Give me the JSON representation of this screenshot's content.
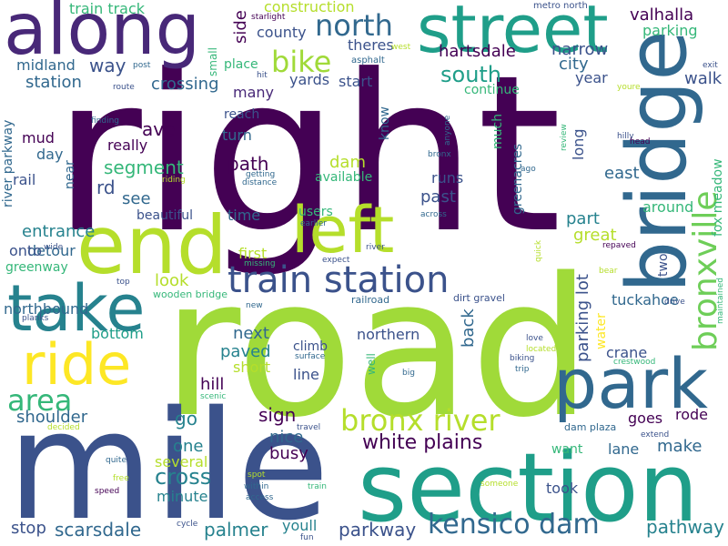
{
  "word_cloud": {
    "background": "#ffffff",
    "palette": {
      "dark_purple": "#440154",
      "purple": "#482878",
      "indigo": "#3b528b",
      "blue": "#31688e",
      "teal_blue": "#26828e",
      "teal": "#1f9e89",
      "green": "#35b779",
      "light_green": "#6ece58",
      "lime": "#b5de2b",
      "yellow": "#fde725"
    },
    "words": [
      {
        "text": "right",
        "color": "#440154"
      },
      {
        "text": "road",
        "color": "#a0da39"
      },
      {
        "text": "mile",
        "color": "#3b528b"
      },
      {
        "text": "section",
        "color": "#1f9e89"
      },
      {
        "text": "end",
        "color": "#b5de2b"
      },
      {
        "text": "along",
        "color": "#482878"
      },
      {
        "text": "bridge",
        "color": "#31688e"
      },
      {
        "text": "street",
        "color": "#1f9e89"
      },
      {
        "text": "take",
        "color": "#26828e"
      },
      {
        "text": "park",
        "color": "#31688e"
      },
      {
        "text": "left",
        "color": "#b5de2b"
      },
      {
        "text": "ride",
        "color": "#fde725"
      },
      {
        "text": "train station",
        "color": "#3b528b"
      },
      {
        "text": "bronxville",
        "color": "#6ece58"
      },
      {
        "text": "kensico dam",
        "color": "#31688e"
      },
      {
        "text": "bronx river",
        "color": "#b5de2b"
      },
      {
        "text": "north",
        "color": "#31688e"
      },
      {
        "text": "area",
        "color": "#35b779"
      },
      {
        "text": "bike",
        "color": "#a0da39"
      },
      {
        "text": "white plains",
        "color": "#440154"
      },
      {
        "text": "south",
        "color": "#1f9e89"
      },
      {
        "text": "scarsdale",
        "color": "#31688e"
      },
      {
        "text": "cross",
        "color": "#26828e"
      },
      {
        "text": "pathway",
        "color": "#26828e"
      },
      {
        "text": "parkway",
        "color": "#3b528b"
      },
      {
        "text": "hartsdale",
        "color": "#440154"
      },
      {
        "text": "valhalla",
        "color": "#440154"
      },
      {
        "text": "parking",
        "color": "#35b779"
      },
      {
        "text": "narrow",
        "color": "#3b528b"
      },
      {
        "text": "city",
        "color": "#31688e"
      },
      {
        "text": "year",
        "color": "#3b528b"
      },
      {
        "text": "walk",
        "color": "#3b528b"
      },
      {
        "text": "east",
        "color": "#31688e"
      },
      {
        "text": "around",
        "color": "#35b779"
      },
      {
        "text": "great",
        "color": "#b5de2b"
      },
      {
        "text": "part",
        "color": "#26828e"
      },
      {
        "text": "tuckahoe",
        "color": "#31688e"
      },
      {
        "text": "crane",
        "color": "#3b528b"
      },
      {
        "text": "make",
        "color": "#31688e"
      },
      {
        "text": "rode",
        "color": "#440154"
      },
      {
        "text": "lane",
        "color": "#31688e"
      },
      {
        "text": "took",
        "color": "#3b528b"
      },
      {
        "text": "goes",
        "color": "#440154"
      },
      {
        "text": "want",
        "color": "#35b779"
      },
      {
        "text": "northbound",
        "color": "#31688e"
      },
      {
        "text": "bottom",
        "color": "#1f9e89"
      },
      {
        "text": "next",
        "color": "#31688e"
      },
      {
        "text": "paved",
        "color": "#26828e"
      },
      {
        "text": "short",
        "color": "#b5de2b"
      },
      {
        "text": "hill",
        "color": "#440154"
      },
      {
        "text": "sign",
        "color": "#440154"
      },
      {
        "text": "nice",
        "color": "#31688e"
      },
      {
        "text": "busy",
        "color": "#440154"
      },
      {
        "text": "one",
        "color": "#26828e"
      },
      {
        "text": "several",
        "color": "#b5de2b"
      },
      {
        "text": "minute",
        "color": "#26828e"
      },
      {
        "text": "palmer",
        "color": "#26828e"
      },
      {
        "text": "youll",
        "color": "#26828e"
      },
      {
        "text": "stop",
        "color": "#3b528b"
      },
      {
        "text": "go",
        "color": "#26828e"
      },
      {
        "text": "shoulder",
        "color": "#31688e"
      },
      {
        "text": "entrance",
        "color": "#26828e"
      },
      {
        "text": "detour",
        "color": "#31688e"
      },
      {
        "text": "onto",
        "color": "#3b528b"
      },
      {
        "text": "greenway",
        "color": "#35b779"
      },
      {
        "text": "day",
        "color": "#31688e"
      },
      {
        "text": "mud",
        "color": "#440154"
      },
      {
        "text": "rail",
        "color": "#3b528b"
      },
      {
        "text": "near",
        "color": "#31688e"
      },
      {
        "text": "segment",
        "color": "#35b779"
      },
      {
        "text": "really",
        "color": "#440154"
      },
      {
        "text": "rd",
        "color": "#3b528b"
      },
      {
        "text": "ave",
        "color": "#440154"
      },
      {
        "text": "see",
        "color": "#31688e"
      },
      {
        "text": "beautiful",
        "color": "#3b528b"
      },
      {
        "text": "time",
        "color": "#31688e"
      },
      {
        "text": "path",
        "color": "#440154"
      },
      {
        "text": "dam",
        "color": "#b5de2b"
      },
      {
        "text": "available",
        "color": "#35b779"
      },
      {
        "text": "runs",
        "color": "#3b528b"
      },
      {
        "text": "past",
        "color": "#3b528b"
      },
      {
        "text": "users",
        "color": "#35b779"
      },
      {
        "text": "first",
        "color": "#b5de2b"
      },
      {
        "text": "look",
        "color": "#b5de2b"
      },
      {
        "text": "climb",
        "color": "#3b528b"
      },
      {
        "text": "line",
        "color": "#3b528b"
      },
      {
        "text": "northern",
        "color": "#3b528b"
      },
      {
        "text": "back",
        "color": "#31688e"
      },
      {
        "text": "water",
        "color": "#fde725"
      },
      {
        "text": "parking lot",
        "color": "#3b528b"
      },
      {
        "text": "long",
        "color": "#3b528b"
      },
      {
        "text": "greenacres",
        "color": "#31688e"
      },
      {
        "text": "know",
        "color": "#31688e"
      },
      {
        "text": "much",
        "color": "#35b779"
      },
      {
        "text": "continue",
        "color": "#35b779"
      },
      {
        "text": "start",
        "color": "#3b528b"
      },
      {
        "text": "yards",
        "color": "#3b528b"
      },
      {
        "text": "crossing",
        "color": "#31688e"
      },
      {
        "text": "station",
        "color": "#31688e"
      },
      {
        "text": "midland",
        "color": "#31688e"
      },
      {
        "text": "way",
        "color": "#3b528b"
      },
      {
        "text": "train track",
        "color": "#35b779"
      },
      {
        "text": "construction",
        "color": "#b5de2b"
      },
      {
        "text": "county",
        "color": "#3b528b"
      },
      {
        "text": "theres",
        "color": "#3b528b"
      },
      {
        "text": "side",
        "color": "#440154"
      },
      {
        "text": "place",
        "color": "#35b779"
      },
      {
        "text": "many",
        "color": "#482878"
      },
      {
        "text": "reach",
        "color": "#3b528b"
      },
      {
        "text": "turn",
        "color": "#31688e"
      },
      {
        "text": "river parkway",
        "color": "#31688e"
      },
      {
        "text": "fox meadow",
        "color": "#35b779"
      },
      {
        "text": "two",
        "color": "#3b528b"
      },
      {
        "text": "small",
        "color": "#35b779"
      },
      {
        "text": "wooden bridge",
        "color": "#35b779"
      },
      {
        "text": "dam plaza",
        "color": "#31688e"
      },
      {
        "text": "railroad",
        "color": "#31688e"
      },
      {
        "text": "dirt gravel",
        "color": "#3b528b"
      },
      {
        "text": "metro north",
        "color": "#3b528b"
      },
      {
        "text": "starlight",
        "color": "#440154"
      },
      {
        "text": "asphalt",
        "color": "#31688e"
      },
      {
        "text": "west",
        "color": "#b5de2b"
      },
      {
        "text": "post",
        "color": "#31688e"
      },
      {
        "text": "route",
        "color": "#3b528b"
      },
      {
        "text": "finding",
        "color": "#31688e"
      },
      {
        "text": "anyone",
        "color": "#31688e"
      },
      {
        "text": "hit",
        "color": "#3b528b"
      },
      {
        "text": "getting",
        "color": "#31688e"
      },
      {
        "text": "riding",
        "color": "#b5de2b"
      },
      {
        "text": "distance",
        "color": "#31688e"
      },
      {
        "text": "missing",
        "color": "#35b779"
      },
      {
        "text": "earlier",
        "color": "#31688e"
      },
      {
        "text": "across",
        "color": "#31688e"
      },
      {
        "text": "expect",
        "color": "#3b528b"
      },
      {
        "text": "river",
        "color": "#3b528b"
      },
      {
        "text": "wide",
        "color": "#3b528b"
      },
      {
        "text": "top",
        "color": "#3b528b"
      },
      {
        "text": "new",
        "color": "#31688e"
      },
      {
        "text": "planks",
        "color": "#3b528b"
      },
      {
        "text": "scenic",
        "color": "#35b779"
      },
      {
        "text": "surface",
        "color": "#31688e"
      },
      {
        "text": "well",
        "color": "#35b779"
      },
      {
        "text": "big",
        "color": "#31688e"
      },
      {
        "text": "love",
        "color": "#3b528b"
      },
      {
        "text": "located",
        "color": "#b5de2b"
      },
      {
        "text": "biking",
        "color": "#3b528b"
      },
      {
        "text": "trip",
        "color": "#31688e"
      },
      {
        "text": "crestwood",
        "color": "#35b779"
      },
      {
        "text": "travel",
        "color": "#3b528b"
      },
      {
        "text": "decided",
        "color": "#b5de2b"
      },
      {
        "text": "free",
        "color": "#b5de2b"
      },
      {
        "text": "speed",
        "color": "#440154"
      },
      {
        "text": "quite",
        "color": "#31688e"
      },
      {
        "text": "spot",
        "color": "#b5de2b"
      },
      {
        "text": "within",
        "color": "#31688e"
      },
      {
        "text": "access",
        "color": "#31688e"
      },
      {
        "text": "train",
        "color": "#35b779"
      },
      {
        "text": "someone",
        "color": "#b5de2b"
      },
      {
        "text": "cycle",
        "color": "#3b528b"
      },
      {
        "text": "fun",
        "color": "#3b528b"
      },
      {
        "text": "extend",
        "color": "#3b528b"
      },
      {
        "text": "drive",
        "color": "#3b528b"
      },
      {
        "text": "bear",
        "color": "#b5de2b"
      },
      {
        "text": "repaved",
        "color": "#440154"
      },
      {
        "text": "quick",
        "color": "#b5de2b"
      },
      {
        "text": "ago",
        "color": "#31688e"
      },
      {
        "text": "bronx",
        "color": "#31688e"
      },
      {
        "text": "hilly",
        "color": "#3b528b"
      },
      {
        "text": "head",
        "color": "#440154"
      },
      {
        "text": "review",
        "color": "#35b779"
      },
      {
        "text": "youre",
        "color": "#b5de2b"
      },
      {
        "text": "exit",
        "color": "#3b528b"
      },
      {
        "text": "maintained",
        "color": "#35b779"
      }
    ]
  }
}
